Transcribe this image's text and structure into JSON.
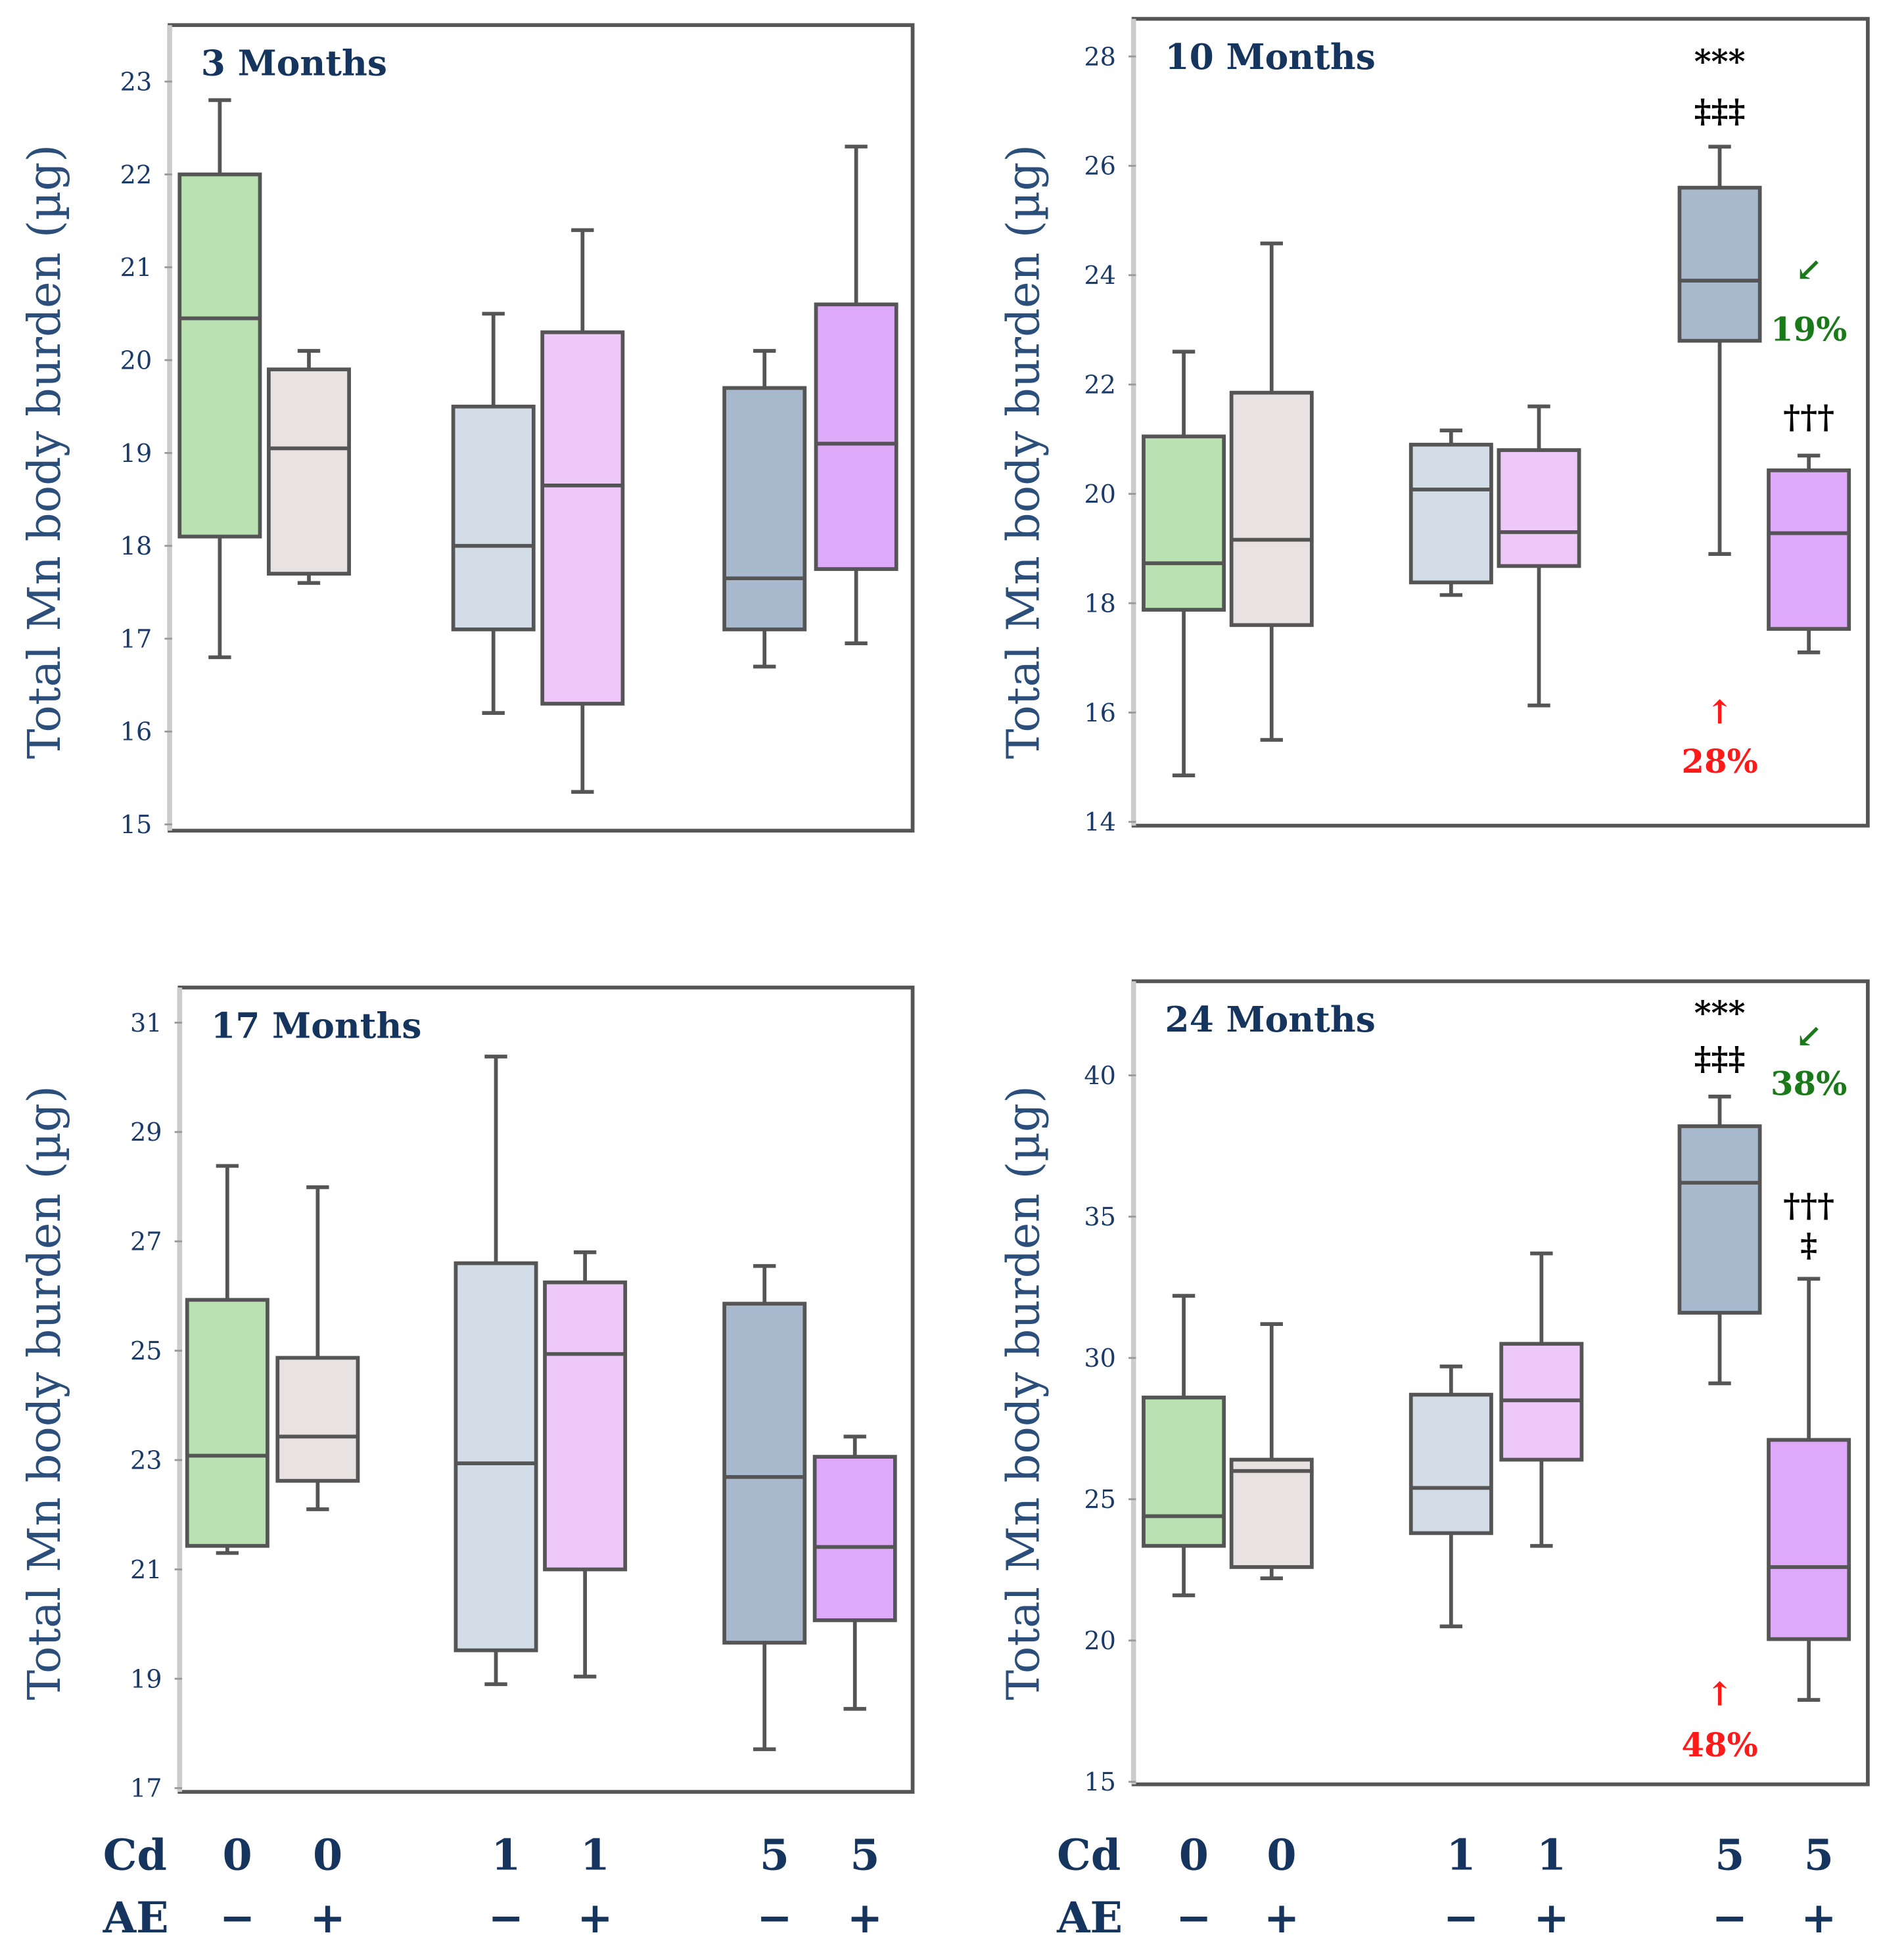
{
  "chart_data": [
    {
      "type": "box",
      "title": "3 Months",
      "ylabel": "Total Mn body burden (µg)",
      "ylim": [
        15,
        23
      ],
      "yticks": [
        15,
        16,
        17,
        18,
        19,
        20,
        21,
        22,
        23
      ],
      "groups": [
        {
          "cd": "0",
          "ae": "−",
          "color": "#b9e1b2",
          "min": 16.8,
          "q1": 18.1,
          "median": 20.45,
          "q3": 22.0,
          "max": 22.8
        },
        {
          "cd": "0",
          "ae": "+",
          "color": "#e8e2e2",
          "min": 17.6,
          "q1": 17.7,
          "median": 19.05,
          "q3": 19.9,
          "max": 20.1
        },
        {
          "cd": "1",
          "ae": "−",
          "color": "#d3dde8",
          "min": 16.2,
          "q1": 17.1,
          "median": 18.0,
          "q3": 19.5,
          "max": 20.5
        },
        {
          "cd": "1",
          "ae": "+",
          "color": "#efc8fa",
          "min": 15.35,
          "q1": 16.3,
          "median": 18.65,
          "q3": 20.3,
          "max": 21.4
        },
        {
          "cd": "5",
          "ae": "−",
          "color": "#a9b9cd",
          "min": 16.7,
          "q1": 17.1,
          "median": 17.65,
          "q3": 19.7,
          "max": 20.1
        },
        {
          "cd": "5",
          "ae": "+",
          "color": "#dfa9f9",
          "min": 16.95,
          "q1": 17.75,
          "median": 19.1,
          "q3": 20.6,
          "max": 22.3
        }
      ],
      "annotations": []
    },
    {
      "type": "box",
      "title": "10 Months",
      "ylabel": "Total Mn body burden (µg)",
      "ylim": [
        14,
        28
      ],
      "yticks": [
        14,
        16,
        18,
        20,
        22,
        24,
        26,
        28
      ],
      "groups": [
        {
          "cd": "0",
          "ae": "−",
          "color": "#b9e1b2",
          "min": 14.85,
          "q1": 17.88,
          "median": 18.73,
          "q3": 21.05,
          "max": 22.6
        },
        {
          "cd": "0",
          "ae": "+",
          "color": "#e8e2e2",
          "min": 15.5,
          "q1": 17.6,
          "median": 19.16,
          "q3": 21.85,
          "max": 24.58
        },
        {
          "cd": "1",
          "ae": "−",
          "color": "#d3dde8",
          "min": 18.15,
          "q1": 18.38,
          "median": 20.08,
          "q3": 20.9,
          "max": 21.16
        },
        {
          "cd": "1",
          "ae": "+",
          "color": "#efc8fa",
          "min": 16.13,
          "q1": 18.68,
          "median": 19.3,
          "q3": 20.8,
          "max": 21.6
        },
        {
          "cd": "5",
          "ae": "−",
          "color": "#a9b9cd",
          "min": 18.9,
          "q1": 22.8,
          "median": 23.9,
          "q3": 25.6,
          "max": 26.35
        },
        {
          "cd": "5",
          "ae": "+",
          "color": "#dfa9f9",
          "min": 17.1,
          "q1": 17.53,
          "median": 19.28,
          "q3": 20.43,
          "max": 20.7
        }
      ],
      "annotations": [
        {
          "text": "***",
          "group": 4,
          "at": 27.7,
          "color": "#000000"
        },
        {
          "text": "‡‡‡",
          "group": 4,
          "at": 26.8,
          "color": "#000000"
        },
        {
          "text": "↙",
          "group": 5,
          "at": 23.9,
          "color": "#1a7a1a"
        },
        {
          "text": "19%",
          "group": 5,
          "at": 22.8,
          "color": "#1a7a1a"
        },
        {
          "text": "†††",
          "group": 5,
          "at": 21.2,
          "color": "#000000"
        },
        {
          "text": "↑",
          "group": 4,
          "at": 15.8,
          "color": "#ff1a1a"
        },
        {
          "text": "28%",
          "group": 4,
          "at": 14.9,
          "color": "#ff1a1a"
        }
      ]
    },
    {
      "type": "box",
      "title": "17 Months",
      "ylabel": "Total Mn body burden (µg)",
      "ylim": [
        17,
        31
      ],
      "yticks": [
        17,
        19,
        21,
        23,
        25,
        27,
        29,
        31
      ],
      "groups": [
        {
          "cd": "0",
          "ae": "−",
          "color": "#b9e1b2",
          "min": 21.3,
          "q1": 21.43,
          "median": 23.08,
          "q3": 25.93,
          "max": 28.38
        },
        {
          "cd": "0",
          "ae": "+",
          "color": "#e8e2e2",
          "min": 22.1,
          "q1": 22.62,
          "median": 23.43,
          "q3": 24.87,
          "max": 27.99
        },
        {
          "cd": "1",
          "ae": "−",
          "color": "#d3dde8",
          "min": 18.9,
          "q1": 19.52,
          "median": 22.94,
          "q3": 26.6,
          "max": 30.38
        },
        {
          "cd": "1",
          "ae": "+",
          "color": "#efc8fa",
          "min": 19.04,
          "q1": 21.0,
          "median": 24.94,
          "q3": 26.25,
          "max": 26.8
        },
        {
          "cd": "5",
          "ae": "−",
          "color": "#a9b9cd",
          "min": 17.71,
          "q1": 19.66,
          "median": 22.69,
          "q3": 25.86,
          "max": 26.55
        },
        {
          "cd": "5",
          "ae": "+",
          "color": "#dfa9f9",
          "min": 18.45,
          "q1": 20.07,
          "median": 21.41,
          "q3": 23.06,
          "max": 23.43
        }
      ],
      "annotations": []
    },
    {
      "type": "box",
      "title": "24 Months",
      "ylabel": "Total Mn body burden (µg)",
      "ylim": [
        15,
        40
      ],
      "yticks": [
        15,
        20,
        25,
        30,
        35,
        40
      ],
      "groups": [
        {
          "cd": "0",
          "ae": "−",
          "color": "#b9e1b2",
          "min": 21.6,
          "q1": 23.35,
          "median": 24.4,
          "q3": 28.6,
          "max": 32.2
        },
        {
          "cd": "0",
          "ae": "+",
          "color": "#e8e2e2",
          "min": 22.2,
          "q1": 22.6,
          "median": 26.0,
          "q3": 26.4,
          "max": 31.2
        },
        {
          "cd": "1",
          "ae": "−",
          "color": "#d3dde8",
          "min": 20.5,
          "q1": 23.8,
          "median": 25.4,
          "q3": 28.7,
          "max": 29.7
        },
        {
          "cd": "1",
          "ae": "+",
          "color": "#efc8fa",
          "min": 23.35,
          "q1": 26.4,
          "median": 28.5,
          "q3": 30.5,
          "max": 33.7
        },
        {
          "cd": "5",
          "ae": "−",
          "color": "#a9b9cd",
          "min": 29.1,
          "q1": 31.6,
          "median": 36.2,
          "q3": 38.2,
          "max": 39.25
        },
        {
          "cd": "5",
          "ae": "+",
          "color": "#dfa9f9",
          "min": 17.9,
          "q1": 20.05,
          "median": 22.6,
          "q3": 27.1,
          "max": 32.8
        }
      ],
      "annotations": [
        {
          "text": "***",
          "group": 4,
          "at": 41.8,
          "color": "#000000"
        },
        {
          "text": "‡‡‡",
          "group": 4,
          "at": 40.2,
          "color": "#000000"
        },
        {
          "text": "↙",
          "group": 5,
          "at": 41.0,
          "color": "#1a7a1a"
        },
        {
          "text": "38%",
          "group": 5,
          "at": 39.3,
          "color": "#1a7a1a"
        },
        {
          "text": "†††",
          "group": 5,
          "at": 35.0,
          "color": "#000000"
        },
        {
          "text": "‡",
          "group": 5,
          "at": 33.6,
          "color": "#000000"
        },
        {
          "text": "↑",
          "group": 4,
          "at": 17.7,
          "color": "#ff1a1a"
        },
        {
          "text": "48%",
          "group": 4,
          "at": 15.9,
          "color": "#ff1a1a"
        }
      ]
    }
  ],
  "x_axis": {
    "row1_label": "Cd",
    "row2_label": "AE"
  }
}
